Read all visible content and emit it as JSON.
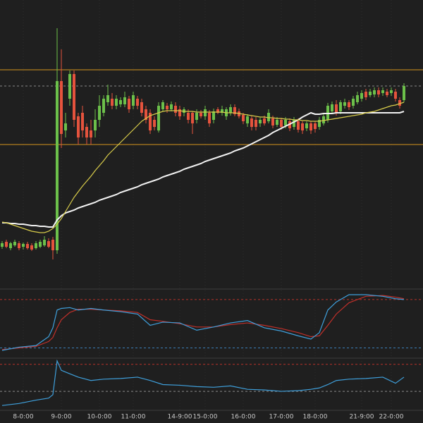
{
  "chart_data": [
    {
      "type": "candlestick",
      "categories": [
        null,
        null,
        null,
        null,
        null,
        "8-0:00",
        null,
        null,
        null,
        null,
        null,
        null,
        null,
        null,
        "9-0:00",
        null,
        null,
        null,
        null,
        null,
        null,
        null,
        null,
        "10-0:00",
        null,
        null,
        null,
        null,
        null,
        null,
        null,
        "11-0:00",
        null,
        null,
        null,
        null,
        null,
        null,
        null,
        null,
        null,
        null,
        "14-9:00",
        null,
        null,
        null,
        null,
        null,
        "15-0:00",
        null,
        null,
        null,
        null,
        null,
        null,
        null,
        null,
        "16-0:00",
        null,
        null,
        null,
        null,
        null,
        null,
        null,
        null,
        "17-0:00",
        null,
        null,
        null,
        null,
        null,
        null,
        null,
        "18-0:00",
        null,
        null,
        null,
        null,
        null,
        null,
        null,
        null,
        null,
        null,
        "21-9:00",
        null,
        null,
        null,
        null,
        null,
        null,
        "22-0:00",
        null,
        null,
        null
      ],
      "open": [
        50,
        57,
        48,
        52,
        55,
        50,
        54,
        52,
        48,
        50,
        52,
        58,
        60,
        45,
        285,
        215,
        260,
        295,
        235,
        240,
        220,
        215,
        215,
        230,
        240,
        255,
        260,
        250,
        252,
        252,
        260,
        250,
        260,
        255,
        245,
        240,
        230,
        215,
        245,
        250,
        245,
        250,
        245,
        240,
        240,
        240,
        230,
        240,
        235,
        240,
        230,
        245,
        240,
        235,
        240,
        248,
        242,
        237,
        225,
        232,
        230,
        225,
        232,
        228,
        232,
        223,
        230,
        222,
        228,
        220,
        228,
        225,
        218,
        225,
        225,
        220,
        225,
        230,
        242,
        252,
        242,
        250,
        255,
        250,
        255,
        260,
        270,
        265,
        266,
        272,
        268,
        270,
        268,
        270,
        258,
        258
      ],
      "high": [
        58,
        60,
        57,
        60,
        58,
        56,
        57,
        55,
        58,
        60,
        65,
        62,
        64,
        360,
        330,
        240,
        300,
        300,
        240,
        250,
        225,
        230,
        245,
        265,
        265,
        280,
        268,
        265,
        262,
        270,
        264,
        270,
        264,
        260,
        250,
        245,
        235,
        255,
        258,
        254,
        256,
        255,
        250,
        248,
        245,
        242,
        245,
        244,
        250,
        244,
        246,
        248,
        250,
        248,
        252,
        252,
        246,
        240,
        238,
        236,
        234,
        233,
        236,
        245,
        236,
        234,
        233,
        234,
        232,
        234,
        232,
        228,
        228,
        228,
        228,
        234,
        240,
        254,
        256,
        258,
        258,
        260,
        258,
        264,
        270,
        272,
        274,
        274,
        276,
        276,
        276,
        274,
        276,
        274,
        262,
        282
      ],
      "low": [
        47,
        48,
        45,
        50,
        45,
        46,
        46,
        44,
        46,
        48,
        50,
        48,
        32,
        40,
        190,
        205,
        250,
        220,
        195,
        205,
        195,
        195,
        205,
        220,
        235,
        250,
        245,
        245,
        248,
        248,
        240,
        245,
        245,
        235,
        225,
        210,
        215,
        212,
        242,
        240,
        242,
        235,
        230,
        235,
        225,
        210,
        225,
        232,
        230,
        220,
        225,
        238,
        236,
        230,
        236,
        235,
        232,
        224,
        220,
        215,
        215,
        220,
        222,
        225,
        218,
        220,
        216,
        218,
        214,
        216,
        212,
        210,
        214,
        210,
        212,
        216,
        222,
        226,
        238,
        236,
        238,
        246,
        244,
        246,
        252,
        256,
        258,
        262,
        262,
        262,
        264,
        262,
        264,
        256,
        246,
        255
      ],
      "close": [
        55,
        50,
        55,
        57,
        48,
        54,
        48,
        46,
        55,
        57,
        60,
        50,
        45,
        285,
        210,
        225,
        295,
        230,
        205,
        215,
        205,
        205,
        230,
        250,
        260,
        265,
        250,
        260,
        258,
        262,
        245,
        265,
        250,
        240,
        230,
        215,
        220,
        250,
        255,
        245,
        252,
        240,
        235,
        245,
        230,
        225,
        240,
        235,
        245,
        225,
        242,
        240,
        245,
        245,
        248,
        238,
        235,
        228,
        235,
        220,
        220,
        230,
        225,
        240,
        222,
        230,
        220,
        230,
        218,
        230,
        216,
        215,
        225,
        215,
        217,
        230,
        235,
        250,
        252,
        240,
        255,
        255,
        248,
        260,
        265,
        268,
        262,
        270,
        272,
        266,
        272,
        265,
        272,
        260,
        250,
        278
      ],
      "up_color": "#6cc04a",
      "down_color": "#e5533d",
      "ylim": [
        0,
        400
      ],
      "overlays": [
        {
          "color": "#f2f2f2",
          "values": [
            84,
            84,
            83,
            83,
            82,
            82,
            81,
            80,
            80,
            79,
            79,
            78,
            78,
            88,
            94,
            98,
            100,
            102,
            105,
            107,
            109,
            111,
            113,
            116,
            118,
            120,
            122,
            124,
            127,
            129,
            131,
            133,
            135,
            138,
            140,
            142,
            144,
            146,
            149,
            151,
            153,
            155,
            157,
            160,
            162,
            164,
            166,
            168,
            171,
            173,
            175,
            177,
            179,
            181,
            183,
            186,
            188,
            190,
            193,
            196,
            199,
            202,
            205,
            208,
            212,
            215,
            218,
            221,
            224,
            227,
            230,
            234,
            237,
            240,
            238,
            238,
            239,
            239,
            239,
            240,
            240,
            240,
            240,
            240,
            240,
            240,
            240,
            240,
            240,
            240,
            240,
            240,
            240,
            240,
            240,
            242
          ]
        },
        {
          "color": "#d8cc4a",
          "values": [
            85,
            84,
            82,
            80,
            78,
            76,
            74,
            72,
            71,
            70,
            70,
            72,
            76,
            82,
            90,
            100,
            110,
            120,
            128,
            136,
            143,
            150,
            158,
            165,
            172,
            180,
            186,
            192,
            198,
            204,
            210,
            216,
            222,
            228,
            232,
            236,
            238,
            240,
            242,
            243,
            243,
            243,
            243,
            242,
            242,
            242,
            241,
            241,
            241,
            241,
            241,
            241,
            241,
            240,
            240,
            240,
            239,
            238,
            237,
            236,
            235,
            234,
            234,
            233,
            233,
            232,
            232,
            231,
            231,
            230,
            230,
            229,
            229,
            228,
            228,
            228,
            229,
            230,
            231,
            232,
            233,
            234,
            235,
            236,
            237,
            238,
            240,
            241,
            242,
            244,
            246,
            248,
            250,
            251,
            253,
            255
          ]
        }
      ],
      "levels": [
        {
          "value": 301,
          "color": "#d4961c",
          "dash": false
        },
        {
          "value": 278,
          "color": "#8a8a8a",
          "dash": true
        },
        {
          "value": 195,
          "color": "#d4961c",
          "dash": false
        }
      ]
    },
    {
      "type": "line",
      "x": [
        0,
        4,
        8,
        11,
        12,
        13,
        14,
        16,
        18,
        21,
        24,
        28,
        32,
        35,
        38,
        42,
        46,
        50,
        54,
        58,
        62,
        66,
        70,
        73,
        75,
        77,
        79,
        82,
        86,
        90,
        93,
        95
      ],
      "series": [
        {
          "color": "#3fa0dc",
          "values": [
            17,
            21,
            23,
            34,
            45,
            67,
            69,
            70,
            67,
            69,
            67,
            65,
            62,
            48,
            52,
            51,
            42,
            46,
            51,
            54,
            45,
            41,
            35,
            31,
            39,
            67,
            77,
            86,
            86,
            84,
            81,
            80
          ]
        },
        {
          "color": "#c0302a",
          "values": [
            18,
            20,
            22,
            28,
            33,
            45,
            55,
            64,
            68,
            68,
            67,
            66,
            64,
            55,
            53,
            50,
            46,
            46,
            49,
            51,
            48,
            44,
            39,
            34,
            35,
            48,
            62,
            76,
            84,
            85,
            83,
            81
          ]
        }
      ],
      "ylim": [
        10,
        93
      ],
      "levels": [
        {
          "value": 80,
          "color": "#b8322a",
          "dash": true
        },
        {
          "value": 20,
          "color": "#3b7fb8",
          "dash": true
        }
      ]
    },
    {
      "type": "line",
      "x": [
        0,
        4,
        8,
        11,
        12,
        13,
        14,
        16,
        18,
        21,
        24,
        28,
        32,
        35,
        38,
        42,
        46,
        50,
        54,
        58,
        62,
        66,
        70,
        73,
        75,
        77,
        79,
        82,
        86,
        90,
        93,
        95
      ],
      "series": [
        {
          "color": "#3fa0dc",
          "values": [
            9,
            12,
            17,
            20,
            25,
            75,
            61,
            56,
            51,
            46,
            48,
            49,
            51,
            46,
            40,
            39,
            37,
            36,
            38,
            33,
            32,
            30,
            31,
            33,
            35,
            40,
            46,
            48,
            49,
            51,
            42,
            51
          ]
        }
      ],
      "ylim": [
        4,
        77
      ],
      "levels": [
        {
          "value": 70,
          "color": "#b8322a",
          "dash": true
        },
        {
          "value": 30,
          "color": "#8a8a8a",
          "dash": true
        }
      ]
    }
  ]
}
